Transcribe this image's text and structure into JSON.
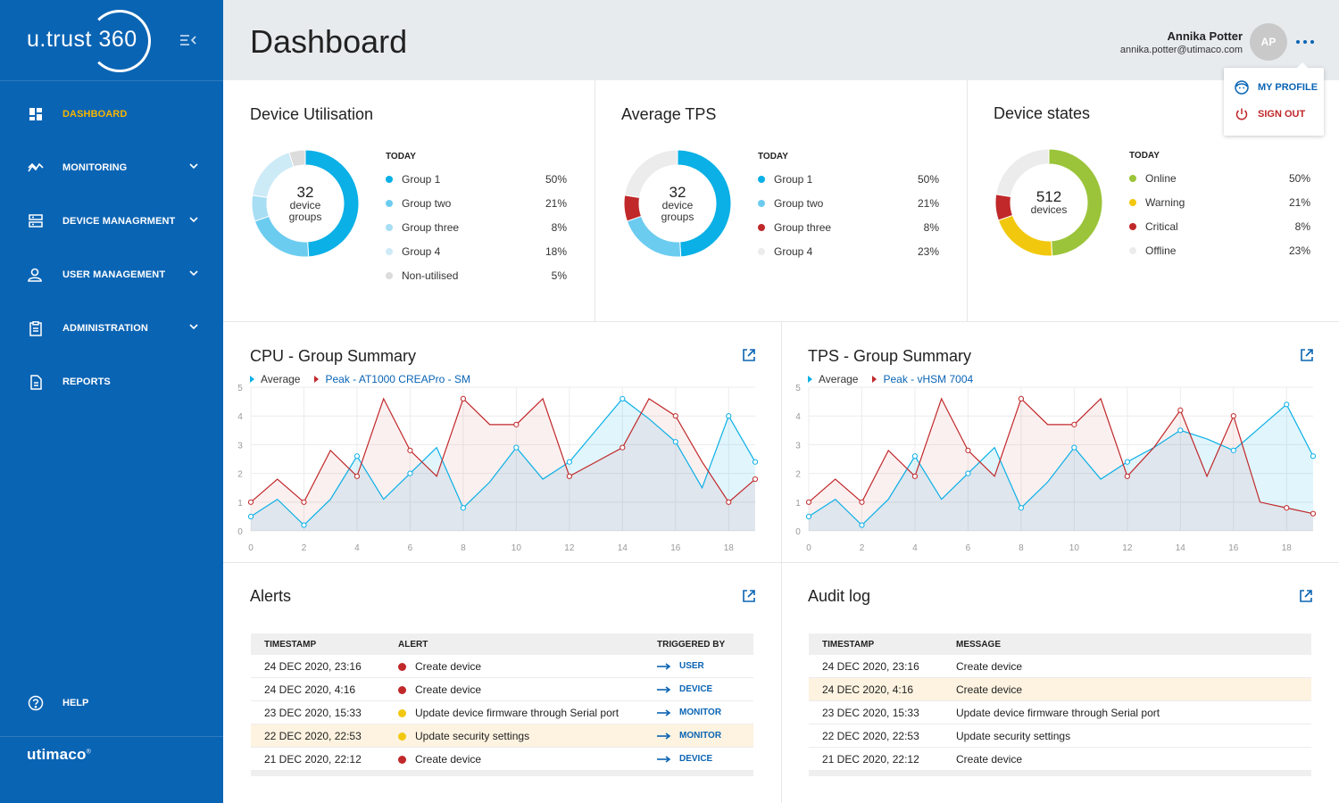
{
  "app": {
    "name": "u.trust",
    "number": "360",
    "brand": "utimaco",
    "brand_mark": "®"
  },
  "nav": {
    "items": [
      {
        "label": "DASHBOARD",
        "icon": "dashboard-icon",
        "active": true
      },
      {
        "label": "MONITORING",
        "icon": "monitoring-icon"
      },
      {
        "label": "DEVICE MANAGRMENT",
        "icon": "device-management-icon"
      },
      {
        "label": "USER MANAGEMENT",
        "icon": "user-management-icon"
      },
      {
        "label": "ADMINISTRATION",
        "icon": "administration-icon"
      },
      {
        "label": "REPORTS",
        "icon": "reports-icon"
      }
    ],
    "help": "HELP"
  },
  "header": {
    "title": "Dashboard"
  },
  "user": {
    "name": "Annika Potter",
    "email": "annika.potter@utimaco.com",
    "initials": "AP"
  },
  "user_menu": {
    "profile": "MY PROFILE",
    "signout": "SIGN OUT"
  },
  "colors": {
    "primary": "#0a64b4",
    "accent": "#f7b500",
    "cyan": "#0ab0e6",
    "red": "#c0282a",
    "green": "#9bc43a",
    "yellow": "#f2c80f"
  },
  "util": {
    "title": "Device Utilisation",
    "today": "TODAY",
    "center_value": "32",
    "center_l1": "device",
    "center_l2": "groups",
    "legend": [
      {
        "label": "Group 1",
        "pct": "50%",
        "value": 50,
        "color": "#0ab0e6"
      },
      {
        "label": "Group two",
        "pct": "21%",
        "value": 21,
        "color": "#6cccf0"
      },
      {
        "label": "Group three",
        "pct": "8%",
        "value": 8,
        "color": "#a7def4"
      },
      {
        "label": "Group 4",
        "pct": "18%",
        "value": 18,
        "color": "#cdeaf7"
      },
      {
        "label": "Non-utilised",
        "pct": "5%",
        "value": 5,
        "color": "#dcdcdc"
      }
    ]
  },
  "tps": {
    "title": "Average TPS",
    "today": "TODAY",
    "center_value": "32",
    "center_l1": "device",
    "center_l2": "groups",
    "legend": [
      {
        "label": "Group 1",
        "pct": "50%",
        "value": 50,
        "color": "#0ab0e6"
      },
      {
        "label": "Group two",
        "pct": "21%",
        "value": 21,
        "color": "#6cccf0"
      },
      {
        "label": "Group three",
        "pct": "8%",
        "value": 8,
        "color": "#c0282a"
      },
      {
        "label": "Group 4",
        "pct": "23%",
        "value": 23,
        "color": "#ececec"
      }
    ]
  },
  "states": {
    "title": "Device states",
    "today": "TODAY",
    "center_value": "512",
    "center_l1": "devices",
    "legend": [
      {
        "label": "Online",
        "pct": "50%",
        "value": 50,
        "color": "#9bc43a"
      },
      {
        "label": "Warning",
        "pct": "21%",
        "value": 21,
        "color": "#f2c80f"
      },
      {
        "label": "Critical",
        "pct": "8%",
        "value": 8,
        "color": "#c0282a"
      },
      {
        "label": "Offline",
        "pct": "23%",
        "value": 23,
        "color": "#ececec"
      }
    ]
  },
  "cpu": {
    "title": "CPU - Group Summary",
    "avg_label": "Average",
    "peak_label": "Peak - AT1000 CREAPro - SM"
  },
  "tpsg": {
    "title": "TPS - Group Summary",
    "avg_label": "Average",
    "peak_label": "Peak - vHSM 7004"
  },
  "chart_data": [
    {
      "type": "area",
      "title": "CPU - Group Summary",
      "x_ticks": [
        "0",
        "2",
        "4",
        "6",
        "8",
        "10",
        "12",
        "14",
        "16",
        "18"
      ],
      "y_ticks": [
        "0",
        "1",
        "2",
        "3",
        "4",
        "5"
      ],
      "xlim": [
        0,
        19
      ],
      "ylim": [
        0,
        5
      ],
      "series": [
        {
          "name": "Average",
          "color": "#0ab0e6",
          "x": [
            0,
            1,
            2,
            3,
            4,
            5,
            6,
            7,
            8,
            9,
            10,
            11,
            12,
            13,
            14,
            15,
            16,
            17,
            18,
            19
          ],
          "values": [
            0.5,
            1.1,
            0.2,
            1.1,
            2.6,
            1.1,
            2.0,
            2.9,
            0.8,
            1.7,
            2.9,
            1.8,
            2.4,
            3.5,
            4.6,
            3.9,
            3.1,
            1.5,
            4.0,
            2.4
          ]
        },
        {
          "name": "Peak - AT1000 CREAPro - SM",
          "color": "#c0282a",
          "x": [
            0,
            1,
            2,
            3,
            4,
            5,
            6,
            7,
            8,
            9,
            10,
            11,
            12,
            13,
            14,
            15,
            16,
            17,
            18,
            19
          ],
          "values": [
            1.0,
            1.8,
            1.0,
            2.8,
            1.9,
            4.6,
            2.8,
            1.9,
            4.6,
            3.7,
            3.7,
            4.6,
            1.9,
            2.4,
            2.9,
            4.6,
            4.0,
            2.4,
            1.0,
            1.8
          ]
        }
      ]
    },
    {
      "type": "area",
      "title": "TPS - Group Summary",
      "x_ticks": [
        "0",
        "2",
        "4",
        "6",
        "8",
        "10",
        "12",
        "14",
        "16",
        "18"
      ],
      "y_ticks": [
        "0",
        "1",
        "2",
        "3",
        "4",
        "5"
      ],
      "xlim": [
        0,
        19
      ],
      "ylim": [
        0,
        5
      ],
      "series": [
        {
          "name": "Average",
          "color": "#0ab0e6",
          "x": [
            0,
            1,
            2,
            3,
            4,
            5,
            6,
            7,
            8,
            9,
            10,
            11,
            12,
            13,
            14,
            15,
            16,
            17,
            18,
            19
          ],
          "values": [
            0.5,
            1.1,
            0.2,
            1.1,
            2.6,
            1.1,
            2.0,
            2.9,
            0.8,
            1.7,
            2.9,
            1.8,
            2.4,
            2.9,
            3.5,
            3.2,
            2.8,
            3.6,
            4.4,
            2.6
          ]
        },
        {
          "name": "Peak - vHSM 7004",
          "color": "#c0282a",
          "x": [
            0,
            1,
            2,
            3,
            4,
            5,
            6,
            7,
            8,
            9,
            10,
            11,
            12,
            13,
            14,
            15,
            16,
            17,
            18,
            19
          ],
          "values": [
            1.0,
            1.8,
            1.0,
            2.8,
            1.9,
            4.6,
            2.8,
            1.9,
            4.6,
            3.7,
            3.7,
            4.6,
            1.9,
            2.9,
            4.2,
            1.9,
            4.0,
            1.0,
            0.8,
            0.6
          ]
        }
      ]
    }
  ],
  "alerts": {
    "title": "Alerts",
    "headers": [
      "TIMESTAMP",
      "ALERT",
      "TRIGGERED BY"
    ],
    "rows": [
      {
        "ts": "24 DEC 2020, 23:16",
        "alert": "Create device",
        "sev": "#c0282a",
        "by": "USER"
      },
      {
        "ts": "24 DEC 2020, 4:16",
        "alert": "Create device",
        "sev": "#c0282a",
        "by": "DEVICE"
      },
      {
        "ts": "23 DEC 2020, 15:33",
        "alert": "Update device firmware through Serial port",
        "sev": "#f2c80f",
        "by": "MONITOR"
      },
      {
        "ts": "22 DEC 2020, 22:53",
        "alert": "Update security settings",
        "sev": "#f2c80f",
        "by": "MONITOR",
        "hl": true
      },
      {
        "ts": "21 DEC 2020, 22:12",
        "alert": "Create device",
        "sev": "#c0282a",
        "by": "DEVICE"
      }
    ]
  },
  "audit": {
    "title": "Audit log",
    "headers": [
      "TIMESTAMP",
      "MESSAGE"
    ],
    "rows": [
      {
        "ts": "24 DEC 2020, 23:16",
        "msg": "Create device"
      },
      {
        "ts": "24 DEC 2020, 4:16",
        "msg": "Create device",
        "hl": true
      },
      {
        "ts": "23 DEC 2020, 15:33",
        "msg": "Update device firmware through Serial port"
      },
      {
        "ts": "22 DEC 2020, 22:53",
        "msg": "Update security settings"
      },
      {
        "ts": "21 DEC 2020, 22:12",
        "msg": "Create device"
      }
    ]
  }
}
